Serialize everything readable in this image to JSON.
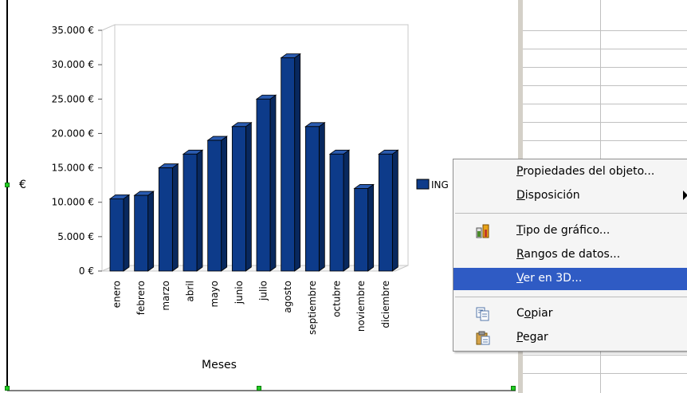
{
  "chart_data": {
    "type": "bar",
    "categories": [
      "enero",
      "febrero",
      "marzo",
      "abril",
      "mayo",
      "junio",
      "julio",
      "agosto",
      "septiembre",
      "octubre",
      "noviembre",
      "diciembre"
    ],
    "series": [
      {
        "name": "ING",
        "values": [
          10500,
          11000,
          15000,
          17000,
          19000,
          21000,
          25000,
          31000,
          21000,
          17000,
          12000,
          17000
        ]
      }
    ],
    "yticks": [
      "35.000 €",
      "30.000 €",
      "25.000 €",
      "20.000 €",
      "15.000 €",
      "10.000 €",
      "5.000 €",
      "0 €"
    ],
    "ylim": [
      0,
      35000
    ],
    "xlabel": "Meses",
    "ylabel": "€",
    "legend_text": "ING",
    "legend_position": "right",
    "bar_color": "#0d3b8a",
    "three_d": true
  },
  "context_menu": {
    "items": [
      {
        "label": "Propiedades del objeto...",
        "underline": "P",
        "rest": "ropiedades del objeto..."
      },
      {
        "label": "Disposición",
        "underline": "D",
        "rest": "isposición"
      },
      {
        "label": "Tipo de gráfico...",
        "underline": "T",
        "rest": "ipo de gráfico..."
      },
      {
        "label": "Rangos de datos...",
        "underline": "R",
        "rest": "angos de datos..."
      },
      {
        "label": "Ver en 3D...",
        "underline": "V",
        "rest": "er en 3D..."
      },
      {
        "label": "Copiar",
        "pre": "C",
        "underline": "o",
        "rest": "piar"
      },
      {
        "label": "Pegar",
        "underline": "P",
        "rest": "egar"
      }
    ],
    "highlight_color": "#2f5bc4"
  }
}
